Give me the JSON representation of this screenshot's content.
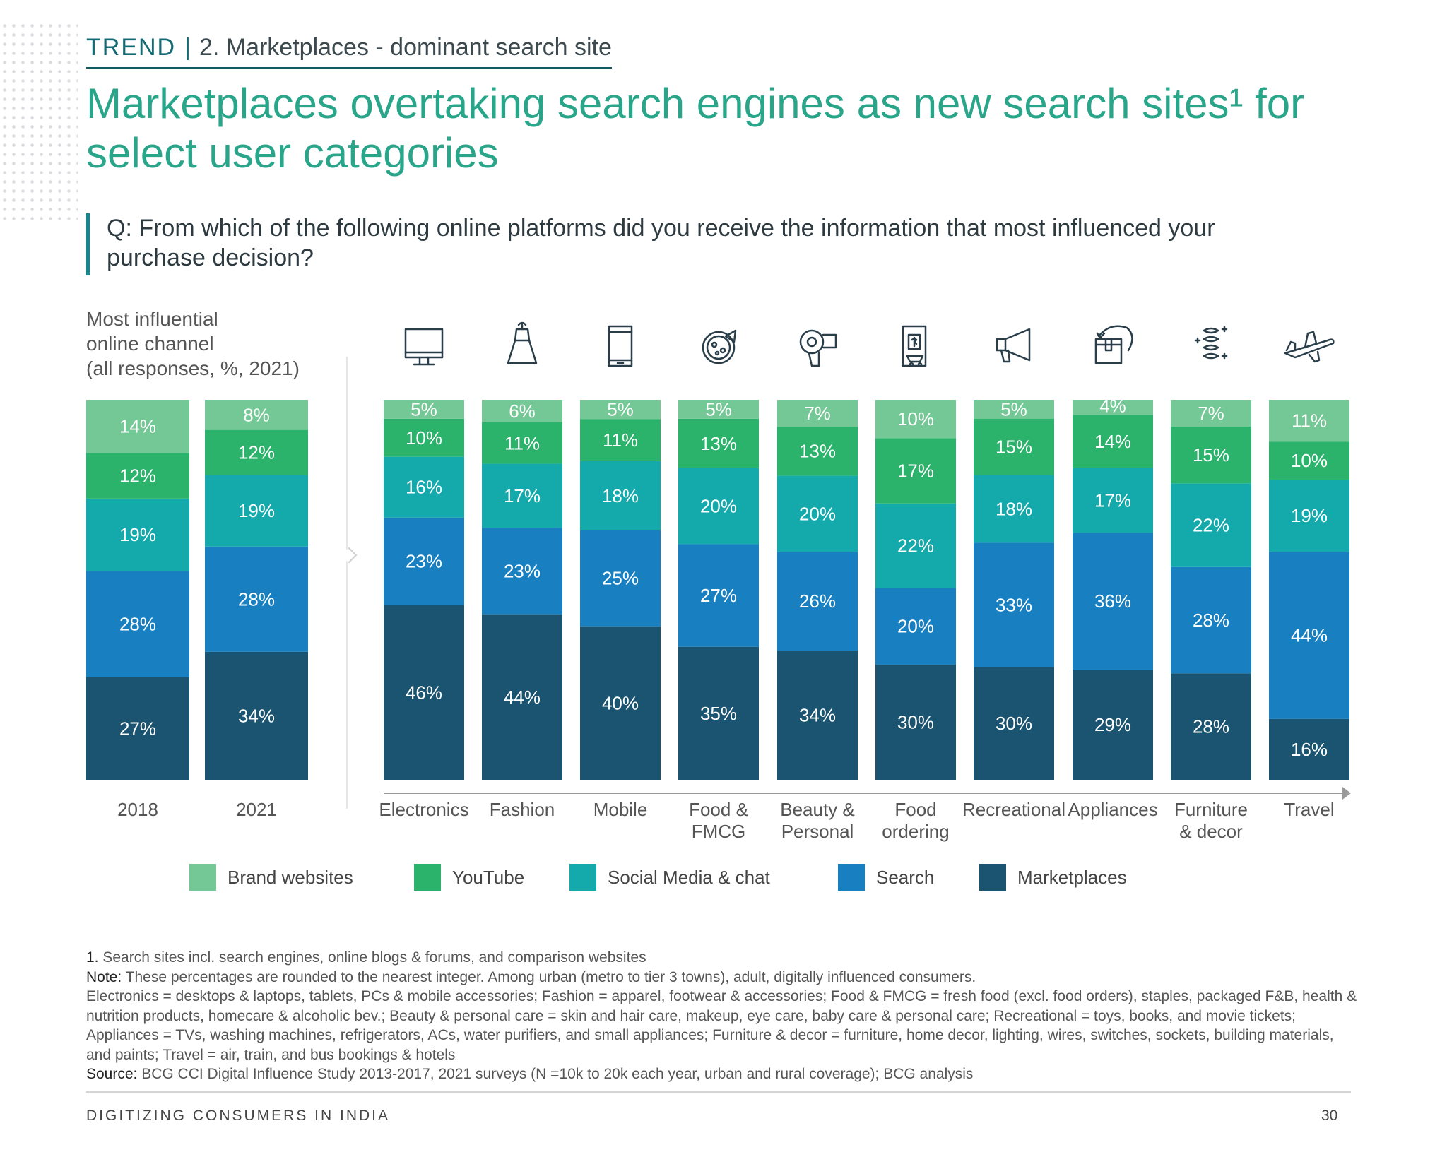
{
  "header": {
    "trend": "TREND",
    "separator": "|",
    "subtitle": "2. Marketplaces - dominant search site"
  },
  "title": "Marketplaces overtaking search engines as new search sites¹ for select user categories",
  "question": "Q: From which of the following online platforms did you receive the information that most influenced your purchase decision?",
  "chart_data": {
    "type": "bar",
    "stacked": true,
    "ylabel": "Most influential online channel (all responses, %, 2021)",
    "categories": [
      "2018",
      "2021",
      "Electronics",
      "Fashion",
      "Mobile",
      "Food & FMCG",
      "Beauty & Personal",
      "Food ordering",
      "Recreational",
      "Appliances",
      "Furniture & decor",
      "Travel"
    ],
    "category_icons": [
      "",
      "",
      "monitor-icon",
      "dress-icon",
      "mobile-phone-icon",
      "pizza-icon",
      "hair-dryer-icon",
      "food-order-phone-icon",
      "megaphone-icon",
      "appliance-box-icon",
      "spring-coil-icon",
      "airplane-icon"
    ],
    "series": [
      {
        "name": "Marketplaces",
        "color": "#1a5471",
        "values": [
          27,
          34,
          46,
          44,
          40,
          35,
          34,
          30,
          30,
          29,
          28,
          16
        ]
      },
      {
        "name": "Search",
        "color": "#1880c1",
        "values": [
          28,
          28,
          23,
          23,
          25,
          27,
          26,
          20,
          33,
          36,
          28,
          44
        ]
      },
      {
        "name": "Social Media & chat",
        "color": "#14aaab",
        "values": [
          19,
          19,
          16,
          17,
          18,
          20,
          20,
          22,
          18,
          17,
          22,
          19
        ]
      },
      {
        "name": "YouTube",
        "color": "#2cb36b",
        "values": [
          12,
          12,
          10,
          11,
          11,
          13,
          13,
          17,
          15,
          14,
          15,
          10
        ]
      },
      {
        "name": "Brand websites",
        "color": "#74c896",
        "values": [
          14,
          8,
          5,
          6,
          5,
          5,
          7,
          10,
          5,
          4,
          7,
          11
        ]
      }
    ],
    "value_suffix": "%",
    "legend_order": [
      "Brand websites",
      "YouTube",
      "Social Media & chat",
      "Search",
      "Marketplaces"
    ],
    "legend": "bottom",
    "grid": false
  },
  "footnotes": {
    "note1_label": "1.",
    "note1": "Search sites incl. search engines, online blogs & forums, and comparison websites",
    "note_label": "Note:",
    "note": "These percentages are rounded to the nearest integer. Among urban (metro to tier 3 towns), adult, digitally influenced consumers.",
    "definitions": "Electronics = desktops & laptops, tablets, PCs & mobile accessories; Fashion = apparel, footwear & accessories; Food & FMCG = fresh food (excl. food orders), staples, packaged F&B, health & nutrition products, homecare & alcoholic bev.; Beauty & personal care = skin and hair care, makeup, eye care, baby care & personal care; Recreational = toys, books, and movie tickets; Appliances = TVs, washing machines, refrigerators, ACs, water purifiers, and small appliances; Furniture & decor = furniture, home decor, lighting, wires, switches, sockets, building materials, and paints; Travel = air, train, and bus bookings & hotels",
    "source_label": "Source:",
    "source": "BCG CCI Digital Influence Study 2013-2017, 2021 surveys (N =10k to 20k each year, urban and rural coverage); BCG analysis"
  },
  "footer": {
    "text": "DIGITIZING CONSUMERS IN INDIA",
    "page": "30"
  }
}
